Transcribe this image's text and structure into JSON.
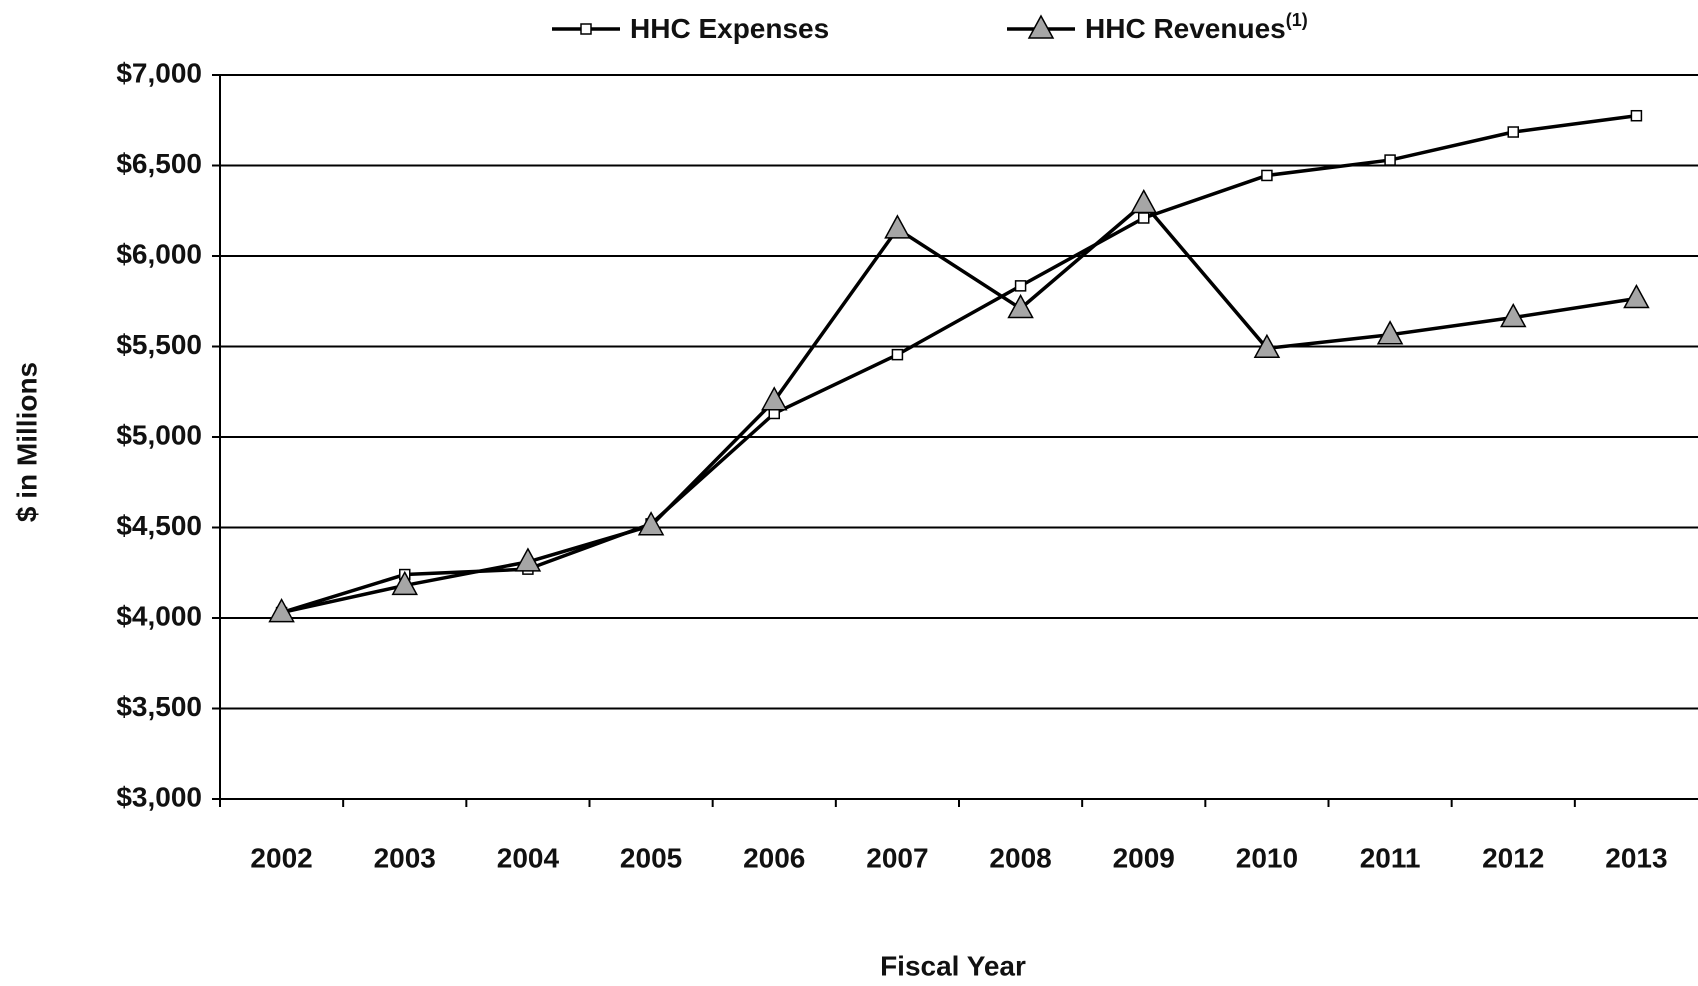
{
  "chart_data": {
    "type": "line",
    "x_label": "Fiscal Year",
    "y_label": "$ in Millions",
    "categories": [
      "2002",
      "2003",
      "2004",
      "2005",
      "2006",
      "2007",
      "2008",
      "2009",
      "2010",
      "2011",
      "2012",
      "2013"
    ],
    "series": [
      {
        "name": "HHC Expenses",
        "color": "#000000",
        "marker": "square",
        "values": [
          4030,
          4240,
          4270,
          4520,
          5130,
          5455,
          5835,
          6210,
          6445,
          6530,
          6685,
          6775
        ]
      },
      {
        "name": "HHC Revenues",
        "footnote_marker": "(1)",
        "color": "#000000",
        "marker": "triangle",
        "values": [
          4030,
          4180,
          4310,
          4510,
          5200,
          6150,
          5710,
          6290,
          5490,
          5565,
          5660,
          5765
        ]
      }
    ],
    "ylim": [
      3000,
      7000
    ],
    "yticks": [
      {
        "value": 3000,
        "label": "$3,000"
      },
      {
        "value": 3500,
        "label": "$3,500"
      },
      {
        "value": 4000,
        "label": "$4,000"
      },
      {
        "value": 4500,
        "label": "$4,500"
      },
      {
        "value": 5000,
        "label": "$5,000"
      },
      {
        "value": 5500,
        "label": "$5,500"
      },
      {
        "value": 6000,
        "label": "$6,000"
      },
      {
        "value": 6500,
        "label": "$6,500"
      },
      {
        "value": 7000,
        "label": "$7,000"
      }
    ],
    "grid": true,
    "legend": "top"
  }
}
